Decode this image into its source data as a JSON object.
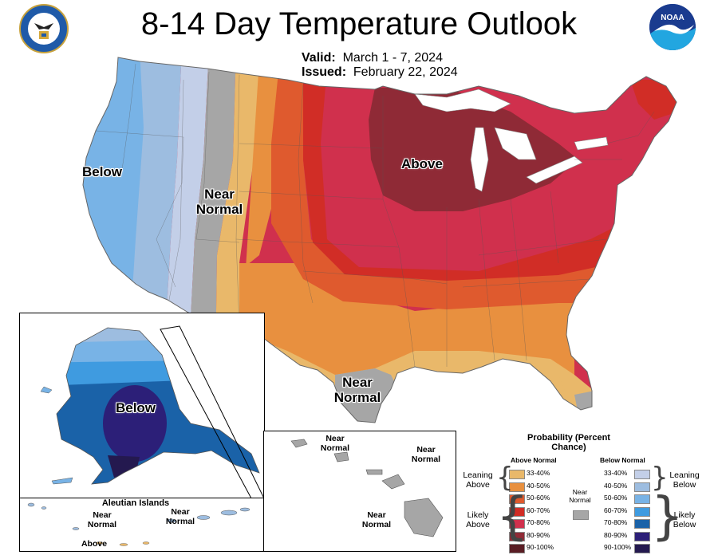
{
  "title": "8-14 Day Temperature Outlook",
  "valid_label": "Valid:",
  "valid_value": "March 1 - 7, 2024",
  "issued_label": "Issued:",
  "issued_value": "February 22, 2024",
  "logos": {
    "left": "department-of-commerce-seal",
    "right": "noaa-logo",
    "right_text": "NOAA"
  },
  "map_labels": {
    "conus_below": "Below",
    "conus_near_west": "Near Normal",
    "conus_above": "Above",
    "conus_near_south": "Near Normal",
    "alaska_below": "Below",
    "aleutian_title": "Aleutian Islands",
    "aleutian_near_1": "Near Normal",
    "aleutian_near_2": "Near Normal",
    "aleutian_above": "Above",
    "hawaii_near_1": "Near Normal",
    "hawaii_near_2": "Near Normal",
    "hawaii_near_3": "Near Normal"
  },
  "legend": {
    "title": "Probability (Percent Chance)",
    "above_header": "Above Normal",
    "below_header": "Below Normal",
    "near_label": "Near Normal",
    "near_color": "#a6a6a6",
    "leaning_above": "Leaning Above",
    "likely_above": "Likely Above",
    "leaning_below": "Leaning Below",
    "likely_below": "Likely Below",
    "above": [
      {
        "range": "33-40%",
        "color": "#e9b86a"
      },
      {
        "range": "40-50%",
        "color": "#e8903f"
      },
      {
        "range": "50-60%",
        "color": "#df5a2e"
      },
      {
        "range": "60-70%",
        "color": "#d12d26"
      },
      {
        "range": "70-80%",
        "color": "#d0304d"
      },
      {
        "range": "80-90%",
        "color": "#8f2a36"
      },
      {
        "range": "90-100%",
        "color": "#5a1d24"
      }
    ],
    "below": [
      {
        "range": "33-40%",
        "color": "#c3cfe8"
      },
      {
        "range": "40-50%",
        "color": "#9dbde0"
      },
      {
        "range": "50-60%",
        "color": "#78b3e6"
      },
      {
        "range": "60-70%",
        "color": "#3f9be0"
      },
      {
        "range": "70-80%",
        "color": "#1a62a8"
      },
      {
        "range": "80-90%",
        "color": "#2c1f78"
      },
      {
        "range": "90-100%",
        "color": "#24194f"
      }
    ]
  }
}
